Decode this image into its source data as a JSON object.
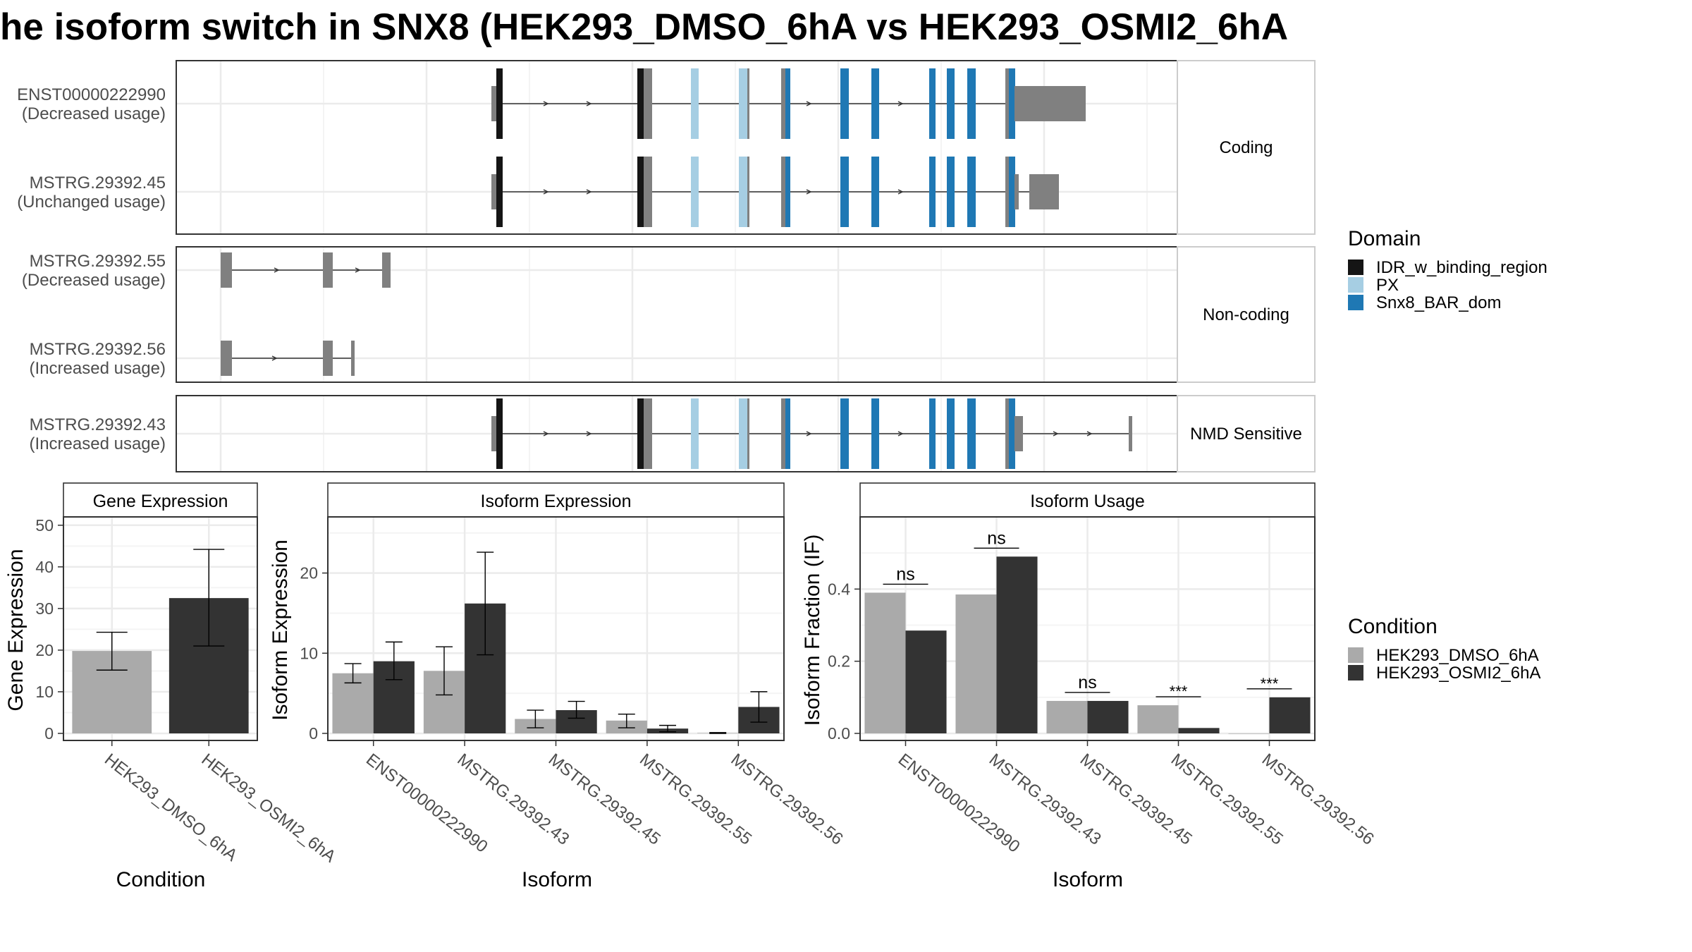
{
  "title": "he isoform switch in SNX8 (HEK293_DMSO_6hA vs HEK293_OSMI2_6hA",
  "structure": {
    "panels": [
      {
        "label": "Coding",
        "rows": [
          {
            "id": "ENST00000222990",
            "usage": "(Decreased usage)",
            "variant": "coding_long"
          },
          {
            "id": "MSTRG.29392.45",
            "usage": "(Unchanged usage)",
            "variant": "coding_short"
          }
        ]
      },
      {
        "label": "Non-coding",
        "rows": [
          {
            "id": "MSTRG.29392.55",
            "usage": "(Decreased usage)",
            "variant": "nc55"
          },
          {
            "id": "MSTRG.29392.56",
            "usage": "(Increased usage)",
            "variant": "nc56"
          }
        ]
      },
      {
        "label": "NMD Sensitive",
        "rows": [
          {
            "id": "MSTRG.29392.43",
            "usage": "(Increased usage)",
            "variant": "nmd"
          }
        ]
      }
    ]
  },
  "legend_domain": {
    "title": "Domain",
    "items": [
      {
        "label": "IDR_w_binding_region",
        "color": "#151515"
      },
      {
        "label": "PX",
        "color": "#a6cee3"
      },
      {
        "label": "Snx8_BAR_dom",
        "color": "#1f78b4"
      }
    ]
  },
  "legend_condition": {
    "title": "Condition",
    "items": [
      {
        "label": "HEK293_DMSO_6hA",
        "color": "#aaaaaa"
      },
      {
        "label": "HEK293_OSMI2_6hA",
        "color": "#333333"
      }
    ]
  },
  "chart_data": [
    {
      "type": "bar",
      "title": "Gene Expression",
      "xlabel": "Condition",
      "ylabel": "Gene Expression",
      "ylim": [
        0,
        52
      ],
      "yticks": [
        0,
        10,
        20,
        30,
        40,
        50
      ],
      "categories": [
        "HEK293_DMSO_6hA",
        "HEK293_OSMI2_6hA"
      ],
      "series": [
        {
          "values": [
            19.8,
            32.5
          ],
          "err_low": [
            15.2,
            21.0
          ],
          "err_high": [
            24.3,
            44.2
          ]
        }
      ]
    },
    {
      "type": "bar",
      "title": "Isoform Expression",
      "xlabel": "Isoform",
      "ylabel": "Isoform Expression",
      "ylim": [
        0,
        27
      ],
      "yticks": [
        0,
        10,
        20
      ],
      "categories": [
        "ENST00000222990",
        "MSTRG.29392.43",
        "MSTRG.29392.45",
        "MSTRG.29392.55",
        "MSTRG.29392.56"
      ],
      "series": [
        {
          "name": "HEK293_DMSO_6hA",
          "values": [
            7.5,
            7.8,
            1.8,
            1.6,
            0.05
          ],
          "err_low": [
            6.3,
            4.8,
            0.7,
            0.7,
            0.0
          ],
          "err_high": [
            8.7,
            10.8,
            2.9,
            2.4,
            0.1
          ]
        },
        {
          "name": "HEK293_OSMI2_6hA",
          "values": [
            9.0,
            16.2,
            2.9,
            0.6,
            3.3
          ],
          "err_low": [
            6.7,
            9.8,
            1.9,
            0.2,
            1.4
          ],
          "err_high": [
            11.4,
            22.6,
            4.0,
            1.0,
            5.2
          ]
        }
      ]
    },
    {
      "type": "bar",
      "title": "Isoform Usage",
      "xlabel": "Isoform",
      "ylabel": "Isoform Fraction (IF)",
      "ylim": [
        0,
        0.6
      ],
      "yticks": [
        0.0,
        0.2,
        0.4
      ],
      "categories": [
        "ENST00000222990",
        "MSTRG.29392.43",
        "MSTRG.29392.45",
        "MSTRG.29392.55",
        "MSTRG.29392.56"
      ],
      "series": [
        {
          "name": "HEK293_DMSO_6hA",
          "values": [
            0.39,
            0.385,
            0.09,
            0.078,
            0.0
          ]
        },
        {
          "name": "HEK293_OSMI2_6hA",
          "values": [
            0.285,
            0.49,
            0.09,
            0.015,
            0.1
          ]
        }
      ],
      "significance": [
        "ns",
        "ns",
        "ns",
        "***",
        "***"
      ]
    }
  ]
}
